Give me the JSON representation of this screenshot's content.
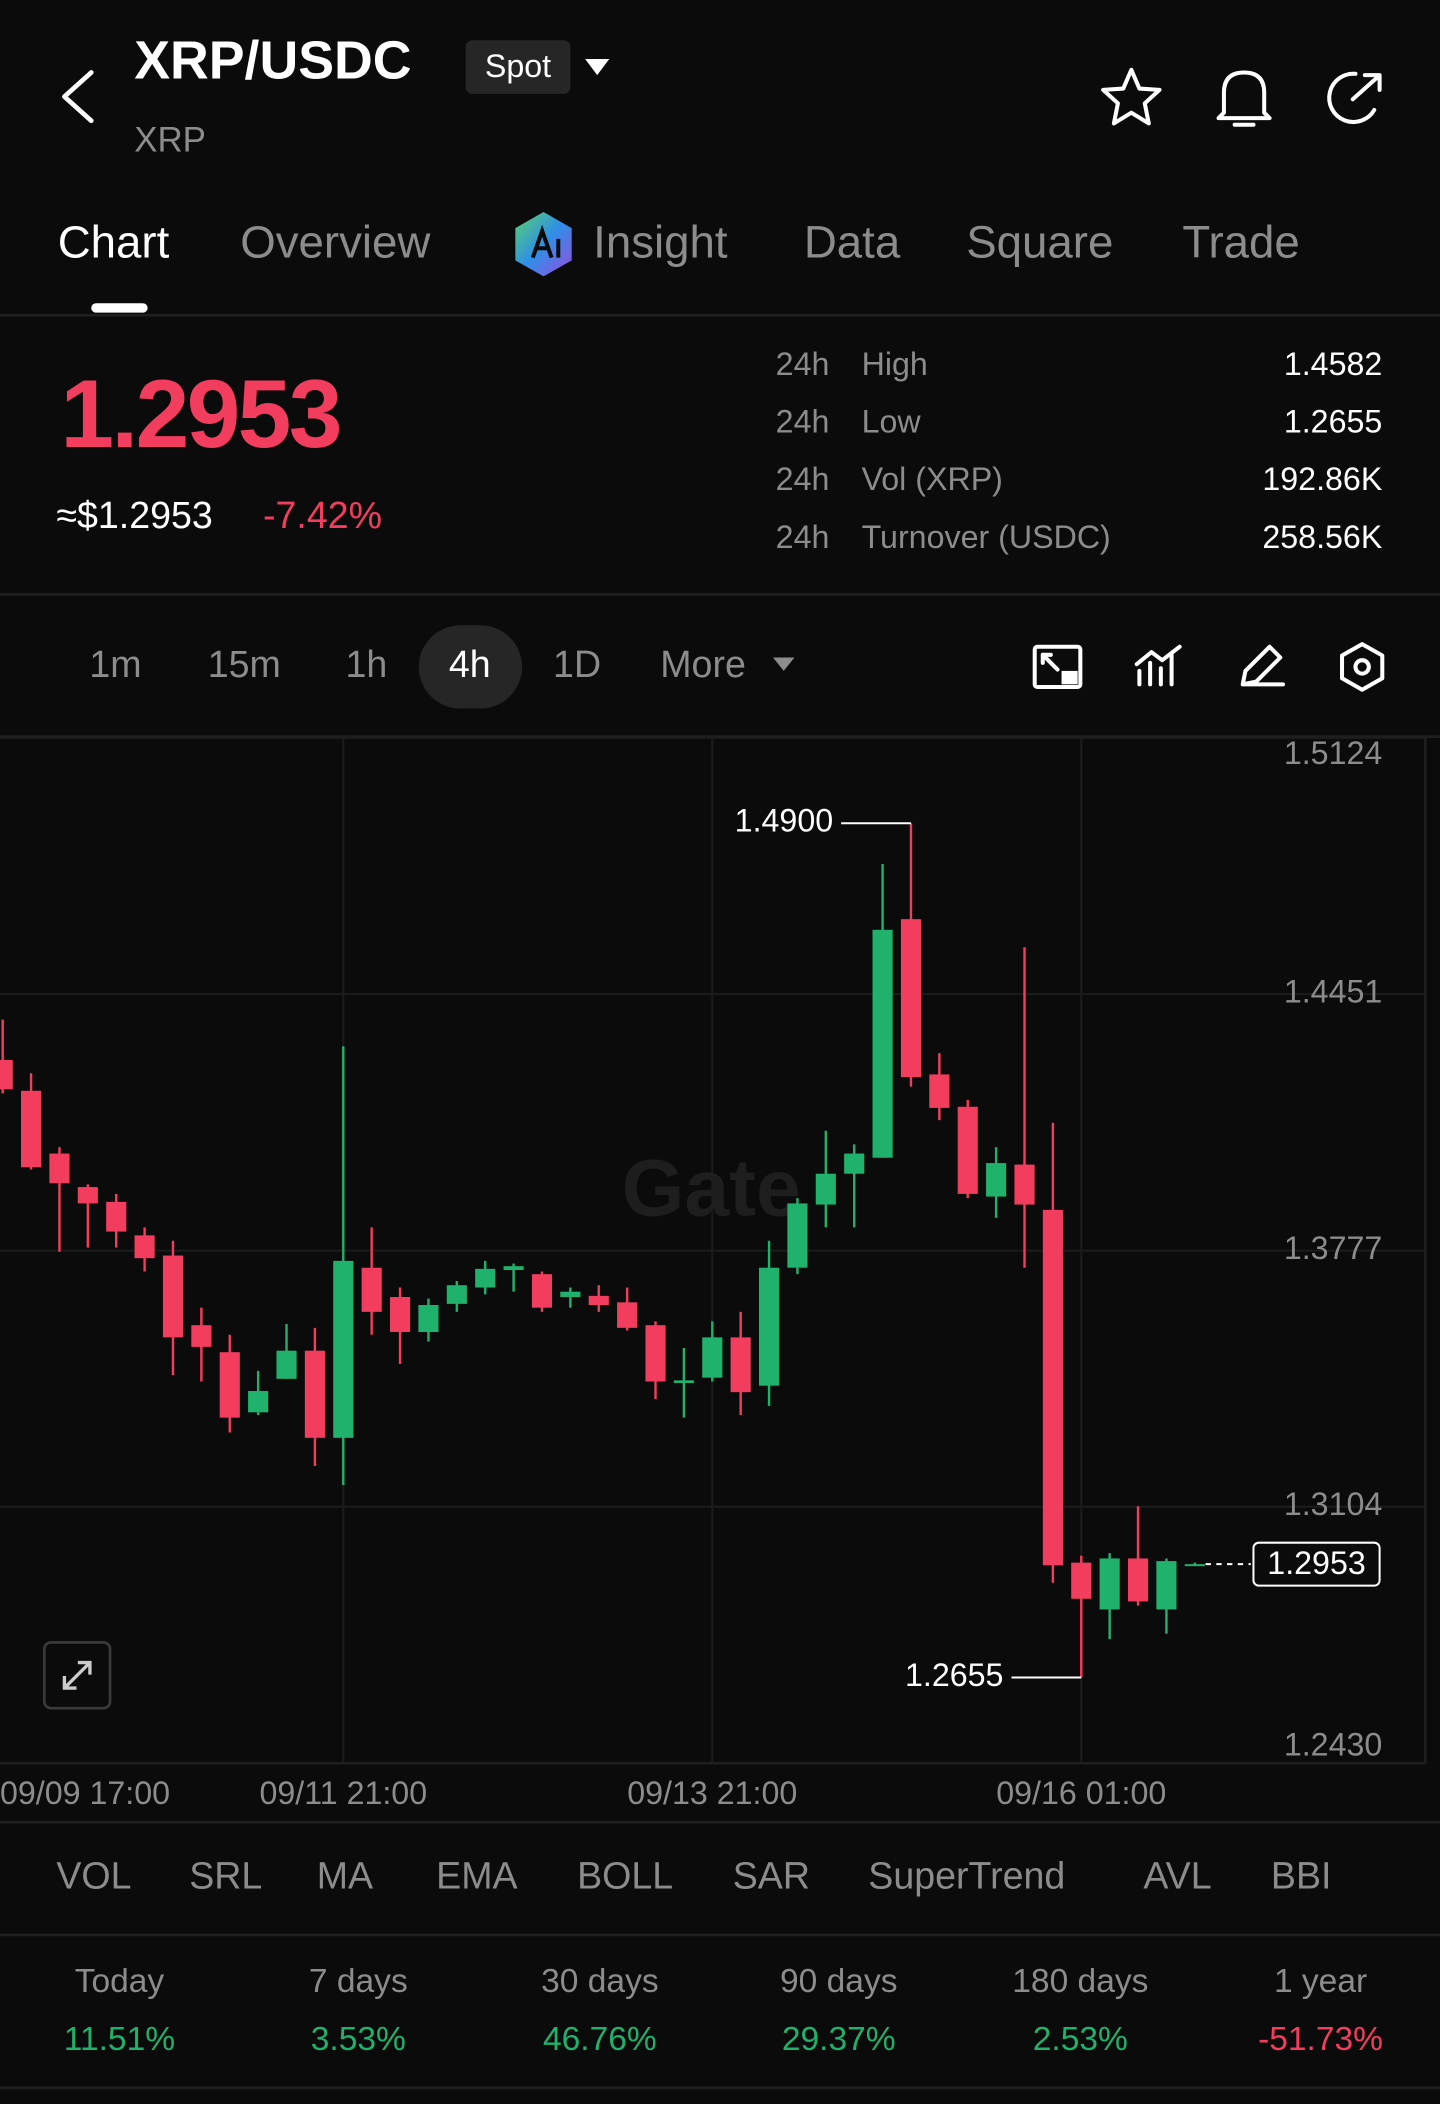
{
  "header": {
    "title": "XRP/USDC",
    "badge": "Spot",
    "subtitle": "XRP"
  },
  "tabs": [
    "Chart",
    "Overview",
    "Insight",
    "Data",
    "Square",
    "Trade"
  ],
  "price": {
    "last": "1.2953",
    "usd": "≈$1.2953",
    "change": "-7.42%"
  },
  "stats": [
    {
      "period": "24h",
      "label": "High",
      "value": "1.4582"
    },
    {
      "period": "24h",
      "label": "Low",
      "value": "1.2655"
    },
    {
      "period": "24h",
      "label": "Vol (XRP)",
      "value": "192.86K"
    },
    {
      "period": "24h",
      "label": "Turnover (USDC)",
      "value": "258.56K"
    }
  ],
  "timeframes": [
    "1m",
    "15m",
    "1h",
    "4h",
    "1D",
    "More"
  ],
  "chart_data": {
    "type": "candlestick",
    "watermark": "Gate",
    "categories": [
      "09/09 17:00",
      null,
      null,
      null,
      null,
      null,
      null,
      null,
      null,
      null,
      null,
      null,
      "09/11 21:00",
      null,
      null,
      null,
      null,
      null,
      null,
      null,
      null,
      null,
      null,
      null,
      null,
      "09/13 21:00",
      null,
      null,
      null,
      null,
      null,
      null,
      null,
      null,
      null,
      null,
      null,
      null,
      "09/16 01:00",
      null,
      null,
      null,
      null
    ],
    "open": [
      1.4278,
      1.4197,
      1.4032,
      1.3944,
      1.3905,
      1.3817,
      1.3764,
      1.3581,
      1.351,
      1.3352,
      1.344,
      1.3514,
      1.3285,
      1.3732,
      1.3655,
      1.3563,
      1.3637,
      1.368,
      1.3726,
      1.3715,
      1.3655,
      1.3658,
      1.3641,
      1.3581,
      1.3429,
      1.3443,
      1.3549,
      1.3422,
      1.3732,
      1.3898,
      1.3979,
      1.4021,
      1.4648,
      1.424,
      1.4155,
      1.3919,
      1.4003,
      1.3884,
      1.2957,
      1.2834,
      1.2968,
      1.2834,
      1.295
    ],
    "high": [
      1.4384,
      1.4243,
      1.4049,
      1.3951,
      1.3926,
      1.3838,
      1.3803,
      1.3627,
      1.3556,
      1.3461,
      1.3584,
      1.3574,
      1.4314,
      1.3838,
      1.368,
      1.3651,
      1.3697,
      1.375,
      1.3743,
      1.3722,
      1.368,
      1.3686,
      1.368,
      1.3591,
      1.3521,
      1.3591,
      1.3616,
      1.3803,
      1.3915,
      1.4092,
      1.4056,
      1.4793,
      1.49,
      1.4296,
      1.4173,
      1.4049,
      1.4574,
      1.4113,
      1.2975,
      1.2982,
      1.3105,
      1.2968,
      1.2957
    ],
    "low": [
      1.419,
      1.399,
      1.3774,
      1.3785,
      1.3785,
      1.3722,
      1.345,
      1.3433,
      1.3299,
      1.3345,
      1.344,
      1.3211,
      1.3161,
      1.3556,
      1.3479,
      1.3538,
      1.3616,
      1.3662,
      1.3669,
      1.3616,
      1.3627,
      1.3616,
      1.3567,
      1.3387,
      1.3338,
      1.3433,
      1.3345,
      1.3369,
      1.3715,
      1.3838,
      1.3838,
      1.4021,
      1.4208,
      1.412,
      1.3915,
      1.3863,
      1.3732,
      1.2904,
      1.2655,
      1.2756,
      1.2844,
      1.277,
      1.2948
    ],
    "close": [
      1.4201,
      1.3996,
      1.3954,
      1.3901,
      1.3827,
      1.3757,
      1.3549,
      1.3524,
      1.3338,
      1.3408,
      1.3514,
      1.3285,
      1.375,
      1.3616,
      1.3563,
      1.3634,
      1.3686,
      1.3729,
      1.3736,
      1.3627,
      1.3669,
      1.3634,
      1.3574,
      1.3433,
      1.3436,
      1.3549,
      1.3405,
      1.3732,
      1.3901,
      1.3979,
      1.4032,
      1.462,
      1.4233,
      1.4152,
      1.3926,
      1.4007,
      1.3898,
      1.295,
      1.2862,
      1.2968,
      1.2855,
      1.2961,
      1.2953
    ],
    "up_color": "#20b26c",
    "down_color": "#f23d5f",
    "ylim": [
      1.243,
      1.5124
    ],
    "yticks": [
      1.5124,
      1.4451,
      1.3777,
      1.3104,
      {
        "value": 1.243,
        "label": "1.2430"
      }
    ],
    "grid": true,
    "high_marker": {
      "value": 1.49,
      "label": "1.4900"
    },
    "low_marker": 1.2655,
    "last_price": 1.2953
  },
  "indicators": [
    "VOL",
    "SRL",
    "MA",
    "EMA",
    "BOLL",
    "SAR",
    "SuperTrend",
    "AVL",
    "BBI"
  ],
  "performance": [
    {
      "period": "Today",
      "change": "11.51%"
    },
    {
      "period": "7 days",
      "change": "3.53%"
    },
    {
      "period": "30 days",
      "change": "46.76%"
    },
    {
      "period": "90 days",
      "change": "29.37%"
    },
    {
      "period": "180 days",
      "change": "2.53%"
    },
    {
      "period": "1 year",
      "change": "-51.73%"
    }
  ]
}
